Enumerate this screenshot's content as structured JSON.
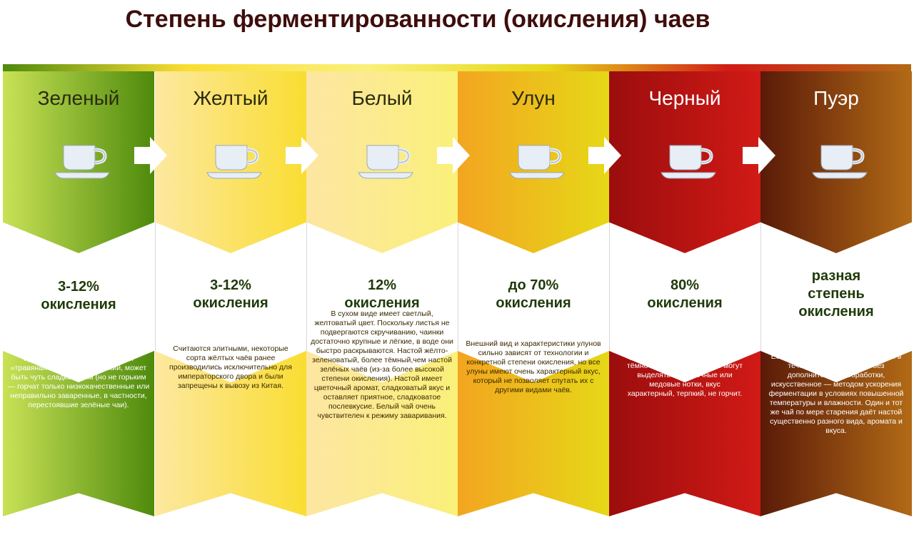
{
  "title": "Степень ферментированности (окисления) чаев",
  "icons": {
    "cup": "cup-saucer-icon",
    "arrow": "right-arrow-icon"
  },
  "columns": [
    {
      "name": "Зеленый",
      "oxidation": "3-12% окисления",
      "description": "В сухом виде имеет зелёный цвет (от салатового до тёмно-зелёного, в зависимости от особенностей изготовления), настой — неяркого желтоватого или зеленоватого цвета, в аромате отчётливо выделяется «травяная» нотка, вкус терпкий, может быть чуть сладковатым (но не горьким — горчат только низкокачественные или неправильно заваренные, в частности, перестоявшие зелёные чаи).",
      "colors": {
        "from": "#c9e256",
        "to": "#4e8a0c",
        "name_text": "#2b2b10",
        "ox_text": "#1f3a0a",
        "desc_text": "#ffffff"
      }
    },
    {
      "name": "Желтый",
      "oxidation": "3-12% окисления",
      "description": "Считаются элитными, некоторые сорта жёлтых чаёв ранее производились исключительно для императорского двора и были запрещены к вывозу из Китая.",
      "colors": {
        "from": "#fde8a0",
        "to": "#f9dd32",
        "name_text": "#2b2b10",
        "ox_text": "#1f3a0a",
        "desc_text": "#3a2a00"
      }
    },
    {
      "name": "Белый",
      "oxidation": "12% окисления",
      "description": "В сухом виде имеет светлый, желтоватый цвет. Поскольку листья не подвергаются скручиванию, чаинки достаточно крупные и лёгкие, в воде они быстро раскрываются. Настой жёлто-зеленоватый, более тёмный,чем настой зелёных чаёв (из-за более высокой степени окисления). Настой имеет цветочный аромат, сладковатый вкус и оставляет приятное, сладковатое послевкусие. Белый чай очень чувствителен к режиму заваривания.",
      "colors": {
        "from": "#fde6a2",
        "to": "#faf07a",
        "name_text": "#2b2b10",
        "ox_text": "#1f3a0a",
        "desc_text": "#3a2a00"
      }
    },
    {
      "name": "Улун",
      "oxidation": "до 70% окисления",
      "description": "Внешний вид и характеристики улунов сильно зависят от технологии и конкретной степени окисления, но все улуны имеют очень характерный вкус, который не позволяет спутать их с другими видами чаёв.",
      "colors": {
        "from": "#f3a520",
        "to": "#e6d818",
        "name_text": "#2b2b10",
        "ox_text": "#1f3a0a",
        "desc_text": "#3a2a00"
      }
    },
    {
      "name": "Черный",
      "oxidation": "80% окисления",
      "description": "В сухом виде имеет тёмно-коричневый или почти чёрный цвет. Настой — от оранжевого до тёмно-красного. В аромате могут выделяться цветочные или медовые нотки, вкус характерный, терпкий, не горчит.",
      "colors": {
        "from": "#9b0d0d",
        "to": "#d11a16",
        "name_text": "#ffffff",
        "ox_text": "#1f3a0a",
        "desc_text": "#ffffff"
      }
    },
    {
      "name": "Пуэр",
      "oxidation": "разная степень окисления",
      "description": "Изготавливается как из почек, так и из зрелых листьев. Первоначально доводится до состояния зелёного чая, после чего проходит ферментацию. Естественное старение проводится в течение нескольких лет без дополнительной обработки, искусственное — методом ускорения ферментации в условиях повышенной температуры и влажности. Один и тот же чай по мере старения даёт настой существенно разного вида, аромата и вкуса.",
      "colors": {
        "from": "#5a1a08",
        "to": "#b26a16",
        "name_text": "#ffffff",
        "ox_text": "#1f3a0a",
        "desc_text": "#ffffff"
      }
    }
  ]
}
